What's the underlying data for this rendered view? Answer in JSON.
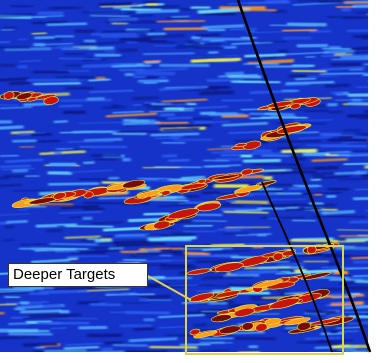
{
  "figure": {
    "colormap": [
      "#0a1a8a",
      "#1533c8",
      "#2a5bf0",
      "#4fa9ff",
      "#6fe0ff",
      "#e8f04a",
      "#ff9a1a",
      "#c8140a",
      "#7a0a06"
    ],
    "fault_color": "#000000",
    "box_color": "#e0d24a",
    "callout": {
      "label": "Deeper Targets",
      "leader_color": "#e0d24a"
    }
  }
}
